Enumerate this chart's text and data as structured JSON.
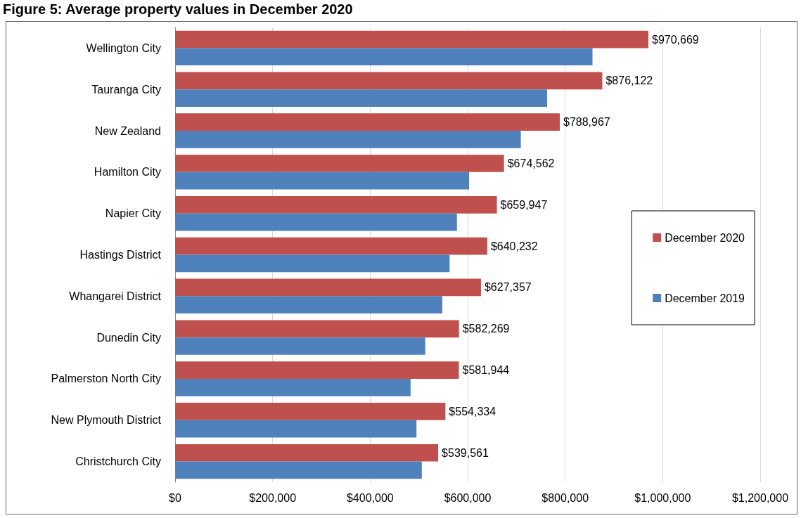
{
  "chart_data": {
    "type": "bar",
    "orientation": "horizontal",
    "title": "Figure 5: Average property values in December 2020",
    "categories": [
      "Wellington City",
      "Tauranga City",
      "New Zealand",
      "Hamilton City",
      "Napier City",
      "Hastings District",
      "Whangarei District",
      "Dunedin City",
      "Palmerston North City",
      "New Plymouth District",
      "Christchurch City"
    ],
    "series": [
      {
        "name": "December 2020",
        "color": "#c0504d",
        "values": [
          970669,
          876122,
          788967,
          674562,
          659947,
          640232,
          627357,
          582269,
          581944,
          554334,
          539561
        ],
        "value_labels": [
          "$970,669",
          "$876,122",
          "$788,967",
          "$674,562",
          "$659,947",
          "$640,232",
          "$627,357",
          "$582,269",
          "$581,944",
          "$554,334",
          "$539,561"
        ]
      },
      {
        "name": "December 2019",
        "color": "#4f81bd",
        "values": [
          856000,
          763000,
          709000,
          603000,
          578000,
          563000,
          548000,
          513000,
          483000,
          495000,
          506000
        ]
      }
    ],
    "xlim": [
      0,
      1200000
    ],
    "xticks": [
      {
        "value": 0,
        "label": "$0"
      },
      {
        "value": 200000,
        "label": "$200,000"
      },
      {
        "value": 400000,
        "label": "$400,000"
      },
      {
        "value": 600000,
        "label": "$600,000"
      },
      {
        "value": 800000,
        "label": "$800,000"
      },
      {
        "value": 1000000,
        "label": "$1,000,000"
      },
      {
        "value": 1200000,
        "label": "$1,200,000"
      }
    ],
    "grid": "x",
    "legend": "right"
  }
}
